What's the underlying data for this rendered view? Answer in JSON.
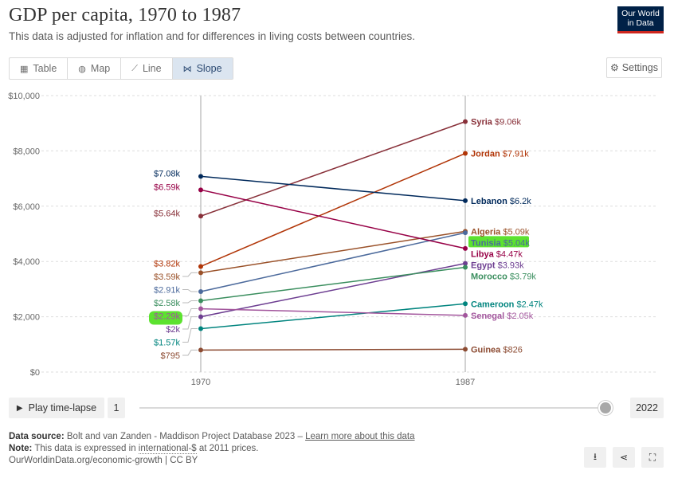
{
  "header": {
    "title": "GDP per capita, 1970 to 1987",
    "subtitle": "This data is adjusted for inflation and for differences in living costs between countries.",
    "logo_line1": "Our World",
    "logo_line2": "in Data"
  },
  "tabs": [
    {
      "label": "Table",
      "icon": "table-icon",
      "active": false
    },
    {
      "label": "Map",
      "icon": "globe-icon",
      "active": false
    },
    {
      "label": "Line",
      "icon": "line-chart-icon",
      "active": false
    },
    {
      "label": "Slope",
      "icon": "slope-chart-icon",
      "active": true
    }
  ],
  "settings_label": "Settings",
  "colors": {
    "accent": "#2c4a72",
    "highlight": "#5ce22f"
  },
  "chart_data": {
    "type": "line",
    "subtype": "slope",
    "x": [
      1970,
      1987
    ],
    "x_tick_labels": [
      "1970",
      "1987"
    ],
    "ylim": [
      0,
      10000
    ],
    "y_ticks": [
      0,
      2000,
      4000,
      6000,
      8000,
      10000
    ],
    "y_tick_labels": [
      "$0",
      "$2,000",
      "$4,000",
      "$6,000",
      "$8,000",
      "$10,000"
    ],
    "grid": true,
    "series": [
      {
        "name": "Syria",
        "values": [
          5640,
          9060
        ],
        "left_label": "$5.64k",
        "right_label": "$9.06k",
        "color": "#883039"
      },
      {
        "name": "Jordan",
        "values": [
          3820,
          7910
        ],
        "left_label": "$3.82k",
        "right_label": "$7.91k",
        "color": "#b13507"
      },
      {
        "name": "Lebanon",
        "values": [
          7080,
          6200
        ],
        "left_label": "$7.08k",
        "right_label": "$6.2k",
        "color": "#00295b"
      },
      {
        "name": "Algeria",
        "values": [
          3590,
          5090
        ],
        "left_label": "$3.59k",
        "right_label": "$5.09k",
        "color": "#9a5129"
      },
      {
        "name": "Tunisia",
        "values": [
          2910,
          5040
        ],
        "left_label": "$2.91k",
        "right_label": "$5.04k",
        "color": "#4c6a9c",
        "highlighted": true
      },
      {
        "name": "Libya",
        "values": [
          6590,
          4470
        ],
        "left_label": "$6.59k",
        "right_label": "$4.47k",
        "color": "#970046"
      },
      {
        "name": "Egypt",
        "values": [
          2000,
          3930
        ],
        "left_label": "$2k",
        "right_label": "$3.93k",
        "color": "#6d3e91"
      },
      {
        "name": "Morocco",
        "values": [
          2580,
          3790
        ],
        "left_label": "$2.58k",
        "right_label": "$3.79k",
        "color": "#3a8e5e"
      },
      {
        "name": "Cameroon",
        "values": [
          1570,
          2470
        ],
        "left_label": "$1.57k",
        "right_label": "$2.47k",
        "color": "#00847e"
      },
      {
        "name": "Senegal",
        "values": [
          2290,
          2050
        ],
        "left_label": "$2.29k",
        "right_label": "$2.05k",
        "color": "#a2559c",
        "highlighted_left": true
      },
      {
        "name": "Guinea",
        "values": [
          795,
          826
        ],
        "left_label": "$795",
        "right_label": "$826",
        "color": "#8c4b32"
      }
    ]
  },
  "timeline": {
    "play_label": "Play time-lapse",
    "start_value": "1",
    "end_value": "2022"
  },
  "source": {
    "label": "Data source:",
    "text": "Bolt and van Zanden - Maddison Project Database 2023 –",
    "link": "Learn more about this data",
    "note_label": "Note:",
    "note_pre": "This data is expressed in",
    "note_link": "international-$",
    "note_post": "at 2011 prices.",
    "url": "OurWorldinData.org/economic-growth | CC BY"
  },
  "actions": [
    {
      "icon": "download-icon",
      "glyph": "⭳"
    },
    {
      "icon": "share-icon",
      "glyph": "⋖"
    },
    {
      "icon": "fullscreen-icon",
      "glyph": "⛶"
    }
  ]
}
